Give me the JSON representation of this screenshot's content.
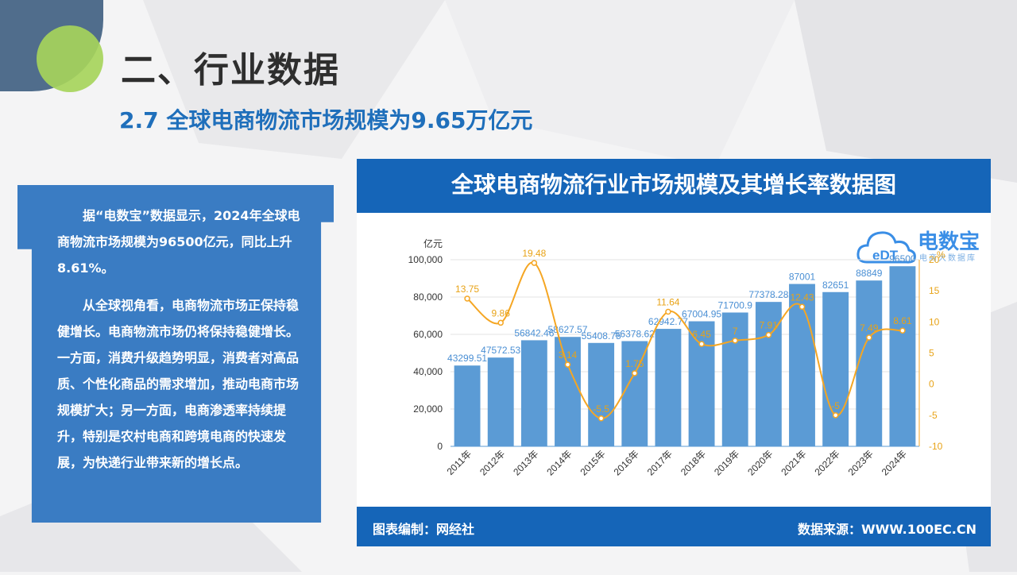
{
  "page": {
    "title": "二、行业数据",
    "subtitle": "2.7 全球电商物流市场规模为9.65万亿元"
  },
  "text_panel": {
    "paragraph1": "据“电数宝”数据显示，2024年全球电商物流市场规模为96500亿元，同比上升8.61%。",
    "paragraph2": "从全球视角看，电商物流市场正保持稳健增长。电商物流市场仍将保持稳健增长。一方面，消费升级趋势明显，消费者对高品质、个性化商品的需求增加，推动电商市场规模扩大；另一方面，电商渗透率持续提升，特别是农村电商和跨境电商的快速发展，为快递行业带来新的增长点。"
  },
  "chart_header": "全球电商物流行业市场规模及其增长率数据图",
  "footer": {
    "left": "图表编制：网经社",
    "right": "数据来源：WWW.100EC.CN"
  },
  "logo": {
    "icon_text": "eDT",
    "brand": "电数宝",
    "sub": "电商大数据库"
  },
  "colors": {
    "bar": "#5b9bd5",
    "line": "#f5a623",
    "header_bg": "#1565b8",
    "panel_bg": "#3a7cc3"
  },
  "chart_data": {
    "type": "bar",
    "categories": [
      "2011年",
      "2012年",
      "2013年",
      "2014年",
      "2015年",
      "2016年",
      "2017年",
      "2018年",
      "2019年",
      "2020年",
      "2021年",
      "2022年",
      "2023年",
      "2024年"
    ],
    "series": [
      {
        "type": "bar",
        "axis": "left",
        "values": [
          43299.51,
          47572.53,
          56842.46,
          58627.57,
          55408.75,
          56378.62,
          62942.77,
          67004.95,
          71700.9,
          77378.28,
          87001,
          82651,
          88849,
          96500
        ],
        "labels": [
          "43299.51",
          "47572.53",
          "56842.46",
          "58627.57",
          "55408.75",
          "56378.62",
          "62942.77",
          "67004.95",
          "71700.9",
          "77378.28",
          "87001",
          "82651",
          "88849",
          "96500"
        ]
      },
      {
        "type": "line",
        "axis": "right",
        "values": [
          13.75,
          9.86,
          19.48,
          3.14,
          -5.5,
          1.75,
          11.64,
          6.45,
          7,
          7.91,
          12.43,
          -5,
          7.49,
          8.61
        ],
        "labels": [
          "13.75",
          "9.86",
          "19.48",
          "3.14",
          "-5.5",
          "1.75",
          "11.64",
          "6.45",
          "7",
          "7.91",
          "12.43",
          "-5",
          "7.49",
          "8.61"
        ]
      }
    ],
    "y_left": {
      "unit": "亿元",
      "min": 0,
      "max": 100000,
      "ticks": [
        0,
        20000,
        40000,
        60000,
        80000,
        100000
      ],
      "tick_labels": [
        "0",
        "20,000",
        "40,000",
        "60,000",
        "80,000",
        "100,000"
      ]
    },
    "y_right": {
      "unit": "%",
      "min": -10,
      "max": 20,
      "ticks": [
        -10,
        -5,
        0,
        5,
        10,
        15,
        20
      ],
      "tick_labels": [
        "-10",
        "-5",
        "0",
        "5",
        "10",
        "15",
        "20"
      ]
    },
    "legend": "none",
    "grid": true
  }
}
